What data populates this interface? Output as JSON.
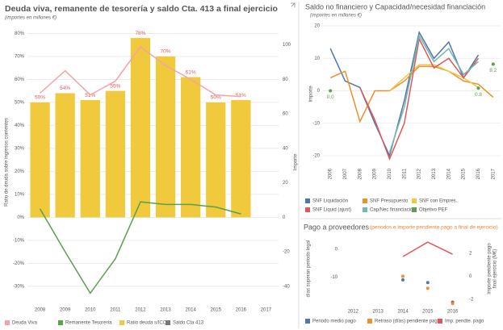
{
  "chart_data": [
    {
      "type": "combo",
      "title": "Deuda viva, remanente de tesorería y saldo Cta. 413  a final ejercicio",
      "subtitle": "(importes en millones €)",
      "ylabel": [
        "Ratio de deuda sobre ingresos corrientes"
      ],
      "y2label": [
        "Importe"
      ],
      "categories": [
        "2008",
        "2009",
        "2010",
        "2011",
        "2012",
        "2013",
        "2014",
        "2015",
        "2016",
        "2017"
      ],
      "ylim": [
        -36,
        84
      ],
      "yticks": [
        {
          "value": -30,
          "label": "-30%"
        },
        {
          "value": -20,
          "label": "-20%"
        },
        {
          "value": -10,
          "label": "-10%"
        },
        {
          "value": 0,
          "label": "0%"
        },
        {
          "value": 10,
          "label": "10%"
        },
        {
          "value": 20,
          "label": "20%"
        },
        {
          "value": 30,
          "label": "30%"
        },
        {
          "value": 40,
          "label": "40%"
        },
        {
          "value": 50,
          "label": "50%"
        },
        {
          "value": 60,
          "label": "60%"
        },
        {
          "value": 70,
          "label": "70%"
        },
        {
          "value": 80,
          "label": "80%"
        }
      ],
      "y2lim": [
        -48,
        112
      ],
      "y2ticks": [
        -40,
        -20,
        0,
        20,
        40,
        60,
        80,
        100
      ],
      "grid": true,
      "series": [
        {
          "name": "Deuda Viva",
          "type": "line",
          "axis": "y2",
          "color": "#f4a3ab",
          "values": [
            72,
            85,
            71,
            79,
            99,
            88,
            80,
            71,
            70,
            null
          ]
        },
        {
          "name": "Remanente Tesorería",
          "type": "line",
          "axis": "y2",
          "color": "#59a14f",
          "values": [
            5,
            -20,
            -44,
            -24,
            9,
            7.5,
            7.5,
            6,
            2,
            null
          ]
        },
        {
          "name": "Ratio deuda s/ICC",
          "type": "bar",
          "color": "#f0c93c",
          "values": [
            50,
            54,
            51,
            55,
            78,
            70,
            61,
            50,
            51,
            null
          ],
          "value_labels": [
            "50%",
            "54%",
            "51%",
            "55%",
            "78%",
            "70%",
            "61%",
            "50%",
            "51%",
            null
          ]
        },
        {
          "name": "Saldo Cta 413",
          "type": "line",
          "axis": "y2",
          "color": "#777777",
          "values": [
            null,
            null,
            null,
            null,
            null,
            null,
            null,
            null,
            null,
            null
          ]
        }
      ]
    },
    {
      "type": "line",
      "title": "Saldo no financiero y Capacidad/necesidad financiación",
      "subtitle": "(importes en millones €)",
      "ylabel": [
        "Importe"
      ],
      "categories": [
        "2006",
        "2007",
        "2008",
        "2009",
        "2010",
        "2011",
        "2012",
        "2013",
        "2014",
        "2015",
        "2016",
        "2017"
      ],
      "ylim": [
        -23,
        21
      ],
      "yticks": [
        -20,
        -10,
        0,
        10,
        20
      ],
      "grid": true,
      "series": [
        {
          "name": "SNF Liquidación",
          "type": "line",
          "color": "#4e79a7",
          "values": [
            13,
            3,
            1,
            -10,
            -20,
            -3,
            18,
            10,
            15,
            4,
            11,
            null
          ]
        },
        {
          "name": "SNF Presupuesto",
          "type": "line",
          "color": "#f28e2b",
          "values": [
            4,
            6,
            -9.5,
            0,
            0,
            3,
            7.5,
            7.5,
            6,
            3,
            2,
            -2
          ]
        },
        {
          "name": "SNF con Empres.",
          "type": "line",
          "color": "#edc948",
          "values": [
            null,
            null,
            null,
            null,
            0,
            4,
            8,
            8,
            6,
            4,
            1,
            null
          ]
        },
        {
          "name": "SNF Liquid (ajust)",
          "type": "line",
          "color": "#e15759",
          "values": [
            null,
            null,
            1,
            -9,
            -21,
            -10,
            16,
            7,
            10,
            4,
            10,
            null
          ]
        },
        {
          "name": "Cap/Nec financiación",
          "type": "line",
          "color": "#76b7b2",
          "values": [
            null,
            null,
            null,
            null,
            -19,
            -5,
            17,
            9,
            13,
            5,
            9,
            null
          ]
        },
        {
          "name": "Objetivo PEF",
          "type": "scatter",
          "color": "#59a14f",
          "values": [
            0,
            null,
            null,
            null,
            null,
            null,
            null,
            null,
            null,
            null,
            0.8,
            8.2
          ],
          "value_labels": [
            "0.0",
            null,
            null,
            null,
            null,
            null,
            null,
            null,
            null,
            null,
            "0.8",
            "8.2"
          ]
        }
      ]
    },
    {
      "type": "combo",
      "title": "Pago a proveedores",
      "subtitle": "(periodos e importe pendiente pago a final de ejercicio)",
      "ylabel": [
        "días superan periodo legal"
      ],
      "y2label": [
        "Importe pendiente pago",
        "final ejercicio (M€)"
      ],
      "categories": [
        "2012",
        "2013",
        "2014",
        "2015",
        "2016"
      ],
      "ylim": [
        -20,
        6
      ],
      "yticks": [
        -10,
        0
      ],
      "y2lim": [
        -2.5,
        3.8
      ],
      "y2ticks": [
        -2,
        0,
        2
      ],
      "grid": false,
      "series": [
        {
          "name": "Periodo medio pago",
          "type": "scatter",
          "color": "#4e79a7",
          "values": [
            null,
            null,
            -11,
            -12,
            -19
          ]
        },
        {
          "name": "Retraso (días) pendiente pago",
          "type": "scatter",
          "color": "#f28e2b",
          "values": [
            null,
            null,
            -9.7,
            -14,
            -19.5
          ]
        },
        {
          "name": "Imp. pendte. pago",
          "type": "line",
          "axis": "y2",
          "color": "#e15759",
          "values": [
            null,
            null,
            1.7,
            2.95,
            1.9
          ]
        }
      ]
    }
  ]
}
